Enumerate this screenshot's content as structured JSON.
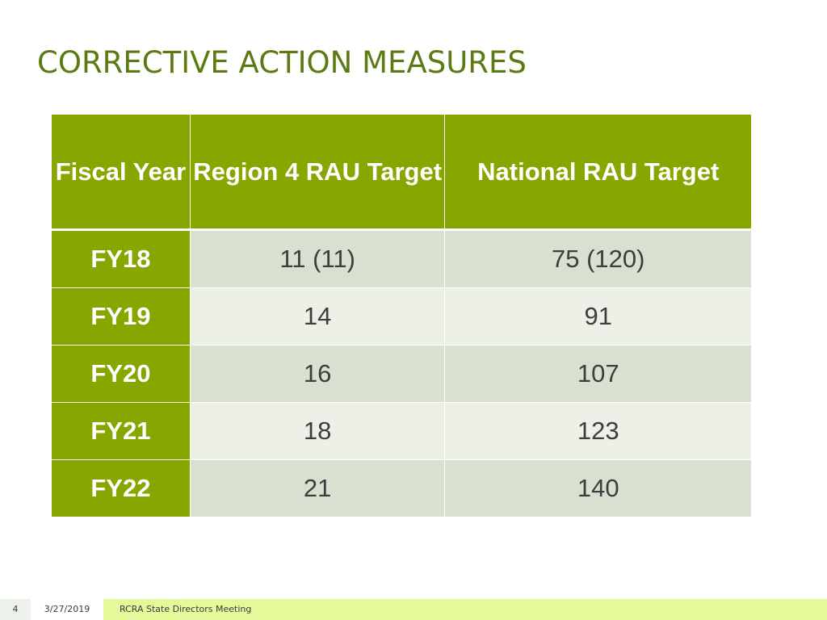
{
  "slide": {
    "title": "CORRECTIVE ACTION MEASURES"
  },
  "table": {
    "headers": [
      "Fiscal Year",
      "Region 4 RAU Target",
      "National RAU Target"
    ],
    "rows": [
      {
        "year": "FY18",
        "region4": "11 (11)",
        "national": "75 (120)"
      },
      {
        "year": "FY19",
        "region4": "14",
        "national": "91"
      },
      {
        "year": "FY20",
        "region4": "16",
        "national": "107"
      },
      {
        "year": "FY21",
        "region4": "18",
        "national": "123"
      },
      {
        "year": "FY22",
        "region4": "21",
        "national": "140"
      }
    ]
  },
  "footer": {
    "page_number": "4",
    "date": "3/27/2019",
    "meeting": "RCRA State Directors Meeting"
  },
  "colors": {
    "title": "#5a7a12",
    "header_bg": "#88a600",
    "row_odd": "#d8e0cf",
    "row_even": "#ecf0e6",
    "footer_band": "#e4f99a"
  }
}
